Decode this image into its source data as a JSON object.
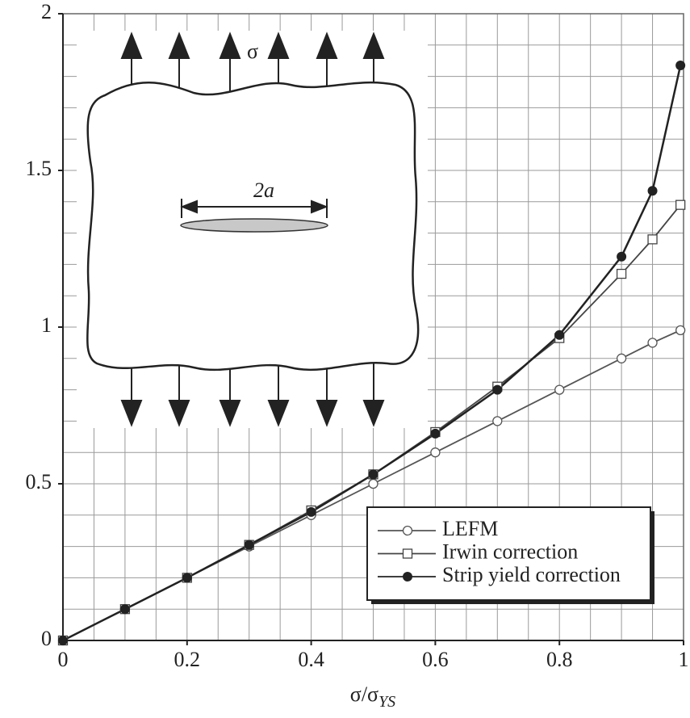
{
  "chart_data": {
    "type": "line",
    "xlabel": "σ/σ",
    "xlabel_subscript": "YS",
    "annotations": [
      "σ",
      "2a"
    ],
    "xlim": [
      0,
      1
    ],
    "ylim": [
      0,
      2
    ],
    "xticks": [
      0,
      0.2,
      0.4,
      0.6,
      0.8,
      1
    ],
    "yticks": [
      0,
      0.5,
      1,
      1.5,
      2
    ],
    "xgrid": [
      0.05,
      0.1,
      0.15,
      0.2,
      0.25,
      0.3,
      0.35,
      0.4,
      0.45,
      0.5,
      0.55,
      0.6,
      0.65,
      0.7,
      0.75,
      0.8,
      0.85,
      0.9,
      0.95
    ],
    "ygrid": [
      0.1,
      0.2,
      0.3,
      0.4,
      0.5,
      0.6,
      0.7,
      0.8,
      0.9,
      1,
      1.1,
      1.2,
      1.3,
      1.4,
      1.5,
      1.6,
      1.7,
      1.8,
      1.9
    ],
    "grid": true,
    "legend": "lower right",
    "x": [
      0,
      0.1,
      0.2,
      0.3,
      0.4,
      0.5,
      0.6,
      0.7,
      0.8,
      0.9,
      0.95,
      0.995
    ],
    "series": [
      {
        "name": "LEFM",
        "color": "#555555",
        "marker": "open-circle",
        "values": [
          0,
          0.1,
          0.2,
          0.3,
          0.4,
          0.5,
          0.6,
          0.7,
          0.8,
          0.9,
          0.95,
          0.99
        ]
      },
      {
        "name": "Irwin correction",
        "color": "#444444",
        "marker": "open-square",
        "values": [
          0,
          0.1,
          0.2,
          0.305,
          0.415,
          0.53,
          0.665,
          0.81,
          0.965,
          1.17,
          1.28,
          1.39
        ]
      },
      {
        "name": "Strip yield correction",
        "color": "#222222",
        "marker": "filled-circle",
        "values": [
          0,
          0.1,
          0.2,
          0.305,
          0.41,
          0.53,
          0.66,
          0.8,
          0.975,
          1.225,
          1.435,
          1.835
        ]
      }
    ]
  }
}
